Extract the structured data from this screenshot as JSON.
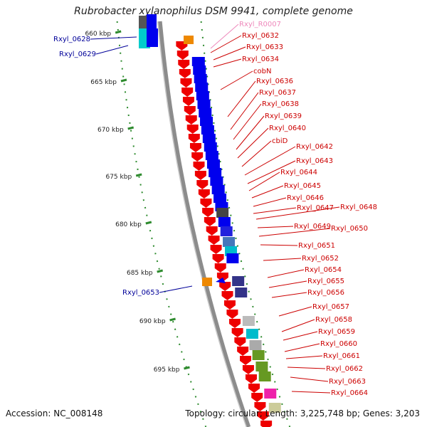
{
  "title": "Rubrobacter xylanophilus DSM 9941, complete genome",
  "accession": "Accession: NC_008148",
  "topology": "Topology: circular; Length: 3,225,748 bp; Genes: 3,203",
  "colors": {
    "backbone": "#8c8c8c",
    "dotted_track": "#2e8b2e",
    "forward_gene": "#ee0000",
    "reverse_gene": "#0000ee",
    "rna_gene": "#ee8800",
    "label_forward": "#cc0000",
    "label_reverse": "#000099",
    "label_rna": "#ee88bb"
  },
  "scale_labels": [
    "660 kbp",
    "665 kbp",
    "670 kbp",
    "675 kbp",
    "680 kbp",
    "685 kbp",
    "690 kbp",
    "695 kbp"
  ],
  "genes_right": [
    {
      "label": "Rxyl_R0007",
      "type": "rna"
    },
    {
      "label": "Rxyl_0632",
      "type": "forward"
    },
    {
      "label": "Rxyl_0633",
      "type": "forward"
    },
    {
      "label": "Rxyl_0634",
      "type": "forward"
    },
    {
      "label": "cobN",
      "type": "forward"
    },
    {
      "label": "Rxyl_0636",
      "type": "forward"
    },
    {
      "label": "Rxyl_0637",
      "type": "forward"
    },
    {
      "label": "Rxyl_0638",
      "type": "forward"
    },
    {
      "label": "Rxyl_0639",
      "type": "forward"
    },
    {
      "label": "Rxyl_0640",
      "type": "forward"
    },
    {
      "label": "cbiD",
      "type": "forward"
    },
    {
      "label": "Rxyl_0642",
      "type": "forward"
    },
    {
      "label": "Rxyl_0643",
      "type": "forward"
    },
    {
      "label": "Rxyl_0644",
      "type": "forward"
    },
    {
      "label": "Rxyl_0645",
      "type": "forward"
    },
    {
      "label": "Rxyl_0646",
      "type": "forward"
    },
    {
      "label": "Rxyl_0647",
      "type": "forward"
    },
    {
      "label": "Rxyl_0648",
      "type": "forward"
    },
    {
      "label": "Rxyl_0649",
      "type": "forward"
    },
    {
      "label": "Rxyl_0650",
      "type": "forward"
    },
    {
      "label": "Rxyl_0651",
      "type": "forward"
    },
    {
      "label": "Rxyl_0652",
      "type": "forward"
    },
    {
      "label": "Rxyl_0654",
      "type": "forward"
    },
    {
      "label": "Rxyl_0655",
      "type": "forward"
    },
    {
      "label": "Rxyl_0656",
      "type": "forward"
    },
    {
      "label": "Rxyl_0657",
      "type": "forward"
    },
    {
      "label": "Rxyl_0658",
      "type": "forward"
    },
    {
      "label": "Rxyl_0659",
      "type": "forward"
    },
    {
      "label": "Rxyl_0660",
      "type": "forward"
    },
    {
      "label": "Rxyl_0661",
      "type": "forward"
    },
    {
      "label": "Rxyl_0662",
      "type": "forward"
    },
    {
      "label": "Rxyl_0663",
      "type": "forward"
    },
    {
      "label": "Rxyl_0664",
      "type": "forward"
    }
  ],
  "genes_left": [
    {
      "label": "Rxyl_0628",
      "type": "reverse"
    },
    {
      "label": "Rxyl_0629",
      "type": "reverse"
    },
    {
      "label": "Rxyl_0653",
      "type": "reverse"
    }
  ]
}
